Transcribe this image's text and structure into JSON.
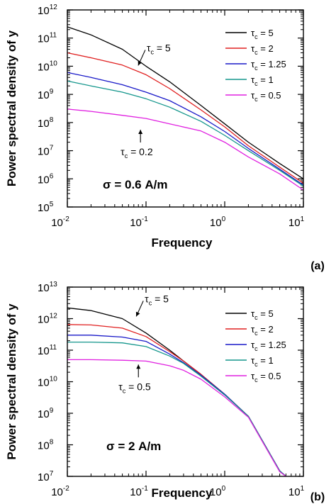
{
  "chart_data": [
    {
      "type": "line",
      "panel_label": "(a)",
      "xlabel": "Frequency",
      "ylabel": "Power spectral density of y",
      "xscale": "log",
      "yscale": "log",
      "xlim": [
        0.01,
        10
      ],
      "ylim": [
        100000,
        1000000000000
      ],
      "x_ticks": [
        {
          "base": "10",
          "exp": "-2"
        },
        {
          "base": "10",
          "exp": "-1"
        },
        {
          "base": "10",
          "exp": "0"
        },
        {
          "base": "10",
          "exp": "1"
        }
      ],
      "y_ticks": [
        {
          "base": "10",
          "exp": "5"
        },
        {
          "base": "10",
          "exp": "6"
        },
        {
          "base": "10",
          "exp": "7"
        },
        {
          "base": "10",
          "exp": "8"
        },
        {
          "base": "10",
          "exp": "9"
        },
        {
          "base": "10",
          "exp": "10"
        },
        {
          "base": "10",
          "exp": "11"
        },
        {
          "base": "10",
          "exp": "12"
        }
      ],
      "legend_position": "top-right",
      "parameter_text": "σ = 0.6 A/m",
      "annotations": [
        {
          "text": "τc = 5",
          "main": "τ",
          "sub": "c",
          "rest": " = 5",
          "x": 0.09,
          "y": 15000000000.0
        },
        {
          "text": "τc = 0.2",
          "main": "τ",
          "sub": "c",
          "rest": " = 0.2",
          "x": 0.085,
          "y": 70000000.0
        }
      ],
      "series": [
        {
          "name": "τc = 5",
          "main": "τ",
          "sub": "c",
          "rest": " = 5",
          "color": "#000000",
          "x": [
            0.01,
            0.02,
            0.05,
            0.1,
            0.2,
            0.5,
            1,
            2,
            5,
            10
          ],
          "y": [
            250000000000.0,
            130000000000.0,
            40000000000.0,
            10000000000.0,
            2800000000.0,
            400000000.0,
            90000000.0,
            20000000.0,
            3500000.0,
            1000000.0
          ]
        },
        {
          "name": "τc = 2",
          "main": "τ",
          "sub": "c",
          "rest": " = 2",
          "color": "#e02020",
          "x": [
            0.01,
            0.02,
            0.05,
            0.1,
            0.2,
            0.5,
            1,
            2,
            5,
            10
          ],
          "y": [
            30000000000.0,
            20000000000.0,
            11000000000.0,
            5000000000.0,
            1600000000.0,
            280000000.0,
            70000000.0,
            15000000.0,
            2600000.0,
            700000.0
          ]
        },
        {
          "name": "τc = 1.25",
          "main": "τ",
          "sub": "c",
          "rest": " = 1.25",
          "color": "#1818c8",
          "x": [
            0.01,
            0.02,
            0.05,
            0.1,
            0.2,
            0.5,
            1,
            2,
            5,
            10
          ],
          "y": [
            6000000000.0,
            4000000000.0,
            2200000000.0,
            1200000000.0,
            600000000.0,
            160000000.0,
            48000000.0,
            12000000.0,
            2200000.0,
            600000.0
          ]
        },
        {
          "name": "τc = 1",
          "main": "τ",
          "sub": "c",
          "rest": " = 1",
          "color": "#14968c",
          "x": [
            0.01,
            0.02,
            0.05,
            0.1,
            0.2,
            0.5,
            1,
            2,
            5,
            10
          ],
          "y": [
            3000000000.0,
            2000000000.0,
            1200000000.0,
            700000000.0,
            350000000.0,
            110000000.0,
            35000000.0,
            10000000.0,
            2000000.0,
            550000.0
          ]
        },
        {
          "name": "τc = 0.5",
          "main": "τ",
          "sub": "c",
          "rest": " = 0.5",
          "color": "#e020e0",
          "x": [
            0.01,
            0.02,
            0.05,
            0.1,
            0.2,
            0.5,
            1,
            2,
            5,
            10
          ],
          "y": [
            300000000.0,
            250000000.0,
            180000000.0,
            140000000.0,
            90000000.0,
            50000000.0,
            20000000.0,
            6000000.0,
            1500000.0,
            400000.0
          ]
        }
      ]
    },
    {
      "type": "line",
      "panel_label": "(b)",
      "xlabel": "Frequency",
      "ylabel": "Power spectral density of y",
      "xscale": "log",
      "yscale": "log",
      "xlim": [
        0.01,
        10
      ],
      "ylim": [
        10000000,
        10000000000000
      ],
      "x_ticks": [
        {
          "base": "10",
          "exp": "-2"
        },
        {
          "base": "10",
          "exp": "-1"
        },
        {
          "base": "10",
          "exp": "0"
        },
        {
          "base": "10",
          "exp": "1"
        }
      ],
      "y_ticks": [
        {
          "base": "10",
          "exp": "7"
        },
        {
          "base": "10",
          "exp": "8"
        },
        {
          "base": "10",
          "exp": "9"
        },
        {
          "base": "10",
          "exp": "10"
        },
        {
          "base": "10",
          "exp": "11"
        },
        {
          "base": "10",
          "exp": "12"
        },
        {
          "base": "10",
          "exp": "13"
        }
      ],
      "legend_position": "top-right",
      "parameter_text": "σ = 2 A/m",
      "annotations": [
        {
          "text": "τc = 5",
          "main": "τ",
          "sub": "c",
          "rest": " = 5",
          "x": 0.085,
          "y": 1600000000000.0
        },
        {
          "text": "τc = 0.5",
          "main": "τ",
          "sub": "c",
          "rest": " = 0.5",
          "x": 0.08,
          "y": 43000000000.0
        }
      ],
      "series": [
        {
          "name": "τc = 5",
          "main": "τ",
          "sub": "c",
          "rest": " = 5",
          "color": "#000000",
          "x": [
            0.01,
            0.02,
            0.05,
            0.1,
            0.2,
            0.3,
            0.5,
            1,
            2,
            5,
            6
          ],
          "y": [
            2200000000000.0,
            1800000000000.0,
            1000000000000.0,
            350000000000.0,
            100000000000.0,
            45000000000.0,
            17000000000.0,
            4000000000.0,
            800000000.0,
            15000000.0,
            10000000.0
          ]
        },
        {
          "name": "τc = 2",
          "main": "τ",
          "sub": "c",
          "rest": " = 2",
          "color": "#e02020",
          "x": [
            0.01,
            0.02,
            0.05,
            0.1,
            0.2,
            0.3,
            0.5,
            1,
            2,
            5,
            6
          ],
          "y": [
            650000000000.0,
            630000000000.0,
            500000000000.0,
            270000000000.0,
            90000000000.0,
            45000000000.0,
            17000000000.0,
            4000000000.0,
            800000000.0,
            15000000.0,
            10000000.0
          ]
        },
        {
          "name": "τc = 1.25",
          "main": "τ",
          "sub": "c",
          "rest": " = 1.25",
          "color": "#1818c8",
          "x": [
            0.01,
            0.02,
            0.05,
            0.1,
            0.2,
            0.3,
            0.5,
            1,
            2,
            5,
            6
          ],
          "y": [
            300000000000.0,
            300000000000.0,
            260000000000.0,
            190000000000.0,
            75000000000.0,
            40000000000.0,
            16000000000.0,
            4000000000.0,
            800000000.0,
            15000000.0,
            10000000.0
          ]
        },
        {
          "name": "τc = 1",
          "main": "τ",
          "sub": "c",
          "rest": " = 1",
          "color": "#14968c",
          "x": [
            0.01,
            0.02,
            0.05,
            0.1,
            0.2,
            0.3,
            0.5,
            1,
            2,
            5,
            6
          ],
          "y": [
            180000000000.0,
            180000000000.0,
            170000000000.0,
            130000000000.0,
            65000000000.0,
            38000000000.0,
            15000000000.0,
            3800000000.0,
            800000000.0,
            15000000.0,
            10000000.0
          ]
        },
        {
          "name": "τc = 0.5",
          "main": "τ",
          "sub": "c",
          "rest": " = 0.5",
          "color": "#e020e0",
          "x": [
            0.01,
            0.02,
            0.05,
            0.1,
            0.2,
            0.3,
            0.5,
            1,
            2,
            5,
            6
          ],
          "y": [
            50000000000.0,
            50000000000.0,
            48000000000.0,
            45000000000.0,
            32000000000.0,
            23000000000.0,
            12000000000.0,
            3300000000.0,
            750000000.0,
            14000000.0,
            10000000.0
          ]
        }
      ]
    }
  ]
}
